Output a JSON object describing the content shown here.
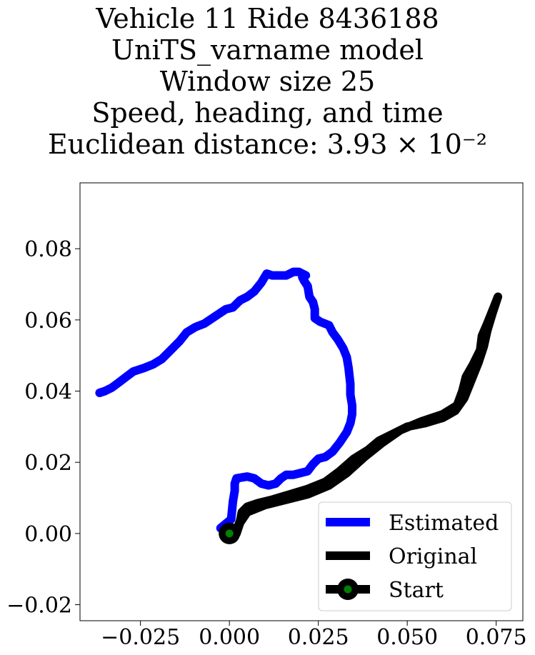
{
  "title_lines": [
    "Vehicle 11 Ride 8436188",
    "UniTS_varname model",
    "Window size 25",
    "Speed, heading, and time",
    "Euclidean distance: 3.93 × 10⁻²"
  ],
  "chart_data": {
    "type": "line",
    "xlim": [
      -0.042,
      0.0825
    ],
    "ylim": [
      -0.0245,
      0.0985
    ],
    "x_ticks": [
      -0.025,
      0.0,
      0.025,
      0.05,
      0.075
    ],
    "x_tick_labels": [
      "−0.025",
      "0.000",
      "0.025",
      "0.050",
      "0.075"
    ],
    "y_ticks": [
      -0.02,
      0.0,
      0.02,
      0.04,
      0.06,
      0.08
    ],
    "y_tick_labels": [
      "−0.02",
      "0.00",
      "0.02",
      "0.04",
      "0.06",
      "0.08"
    ],
    "grid": false,
    "legend_position": "lower right",
    "series": [
      {
        "name": "Estimated",
        "color": "#0000ff",
        "points": [
          [
            -0.0025,
            0.0015
          ],
          [
            0.0005,
            0.004
          ],
          [
            0.001,
            0.009
          ],
          [
            0.0015,
            0.012
          ],
          [
            0.0015,
            0.014
          ],
          [
            0.002,
            0.0155
          ],
          [
            0.005,
            0.016
          ],
          [
            0.007,
            0.0155
          ],
          [
            0.009,
            0.014
          ],
          [
            0.011,
            0.0135
          ],
          [
            0.013,
            0.014
          ],
          [
            0.0145,
            0.0155
          ],
          [
            0.016,
            0.0165
          ],
          [
            0.018,
            0.0165
          ],
          [
            0.02,
            0.017
          ],
          [
            0.022,
            0.0175
          ],
          [
            0.0235,
            0.0195
          ],
          [
            0.025,
            0.021
          ],
          [
            0.027,
            0.0215
          ],
          [
            0.029,
            0.023
          ],
          [
            0.031,
            0.0255
          ],
          [
            0.033,
            0.0285
          ],
          [
            0.034,
            0.031
          ],
          [
            0.0345,
            0.0335
          ],
          [
            0.0345,
            0.036
          ],
          [
            0.034,
            0.039
          ],
          [
            0.034,
            0.042
          ],
          [
            0.0335,
            0.0465
          ],
          [
            0.033,
            0.0495
          ],
          [
            0.032,
            0.052
          ],
          [
            0.0305,
            0.0545
          ],
          [
            0.029,
            0.0565
          ],
          [
            0.028,
            0.0585
          ],
          [
            0.0255,
            0.0595
          ],
          [
            0.024,
            0.0605
          ],
          [
            0.024,
            0.063
          ],
          [
            0.0235,
            0.065
          ],
          [
            0.0225,
            0.0665
          ],
          [
            0.022,
            0.0695
          ],
          [
            0.021,
            0.071
          ],
          [
            0.0205,
            0.072
          ],
          [
            0.0215,
            0.0725
          ],
          [
            0.0205,
            0.073
          ],
          [
            0.0195,
            0.0735
          ],
          [
            0.018,
            0.0735
          ],
          [
            0.016,
            0.0725
          ],
          [
            0.014,
            0.0725
          ],
          [
            0.012,
            0.0725
          ],
          [
            0.0105,
            0.073
          ],
          [
            0.009,
            0.0705
          ],
          [
            0.007,
            0.068
          ],
          [
            0.005,
            0.0665
          ],
          [
            0.003,
            0.0655
          ],
          [
            0.001,
            0.0635
          ],
          [
            -0.001,
            0.063
          ],
          [
            -0.004,
            0.061
          ],
          [
            -0.007,
            0.059
          ],
          [
            -0.0095,
            0.058
          ],
          [
            -0.012,
            0.0565
          ],
          [
            -0.014,
            0.054
          ],
          [
            -0.0165,
            0.0515
          ],
          [
            -0.019,
            0.049
          ],
          [
            -0.0215,
            0.0475
          ],
          [
            -0.024,
            0.0465
          ],
          [
            -0.027,
            0.0455
          ],
          [
            -0.029,
            0.044
          ],
          [
            -0.031,
            0.0425
          ],
          [
            -0.033,
            0.041
          ],
          [
            -0.035,
            0.04
          ],
          [
            -0.0365,
            0.0395
          ]
        ]
      },
      {
        "name": "Original",
        "color": "#000000",
        "points": [
          [
            0.0,
            0.0
          ],
          [
            0.002,
            0.001
          ],
          [
            0.003,
            0.0035
          ],
          [
            0.0035,
            0.006
          ],
          [
            0.005,
            0.0075
          ],
          [
            0.008,
            0.0085
          ],
          [
            0.012,
            0.0095
          ],
          [
            0.017,
            0.011
          ],
          [
            0.022,
            0.0125
          ],
          [
            0.027,
            0.0145
          ],
          [
            0.031,
            0.0175
          ],
          [
            0.035,
            0.021
          ],
          [
            0.039,
            0.0235
          ],
          [
            0.042,
            0.026
          ],
          [
            0.046,
            0.028
          ],
          [
            0.05,
            0.03
          ],
          [
            0.055,
            0.031
          ],
          [
            0.06,
            0.0325
          ],
          [
            0.0635,
            0.0345
          ],
          [
            0.066,
            0.038
          ],
          [
            0.068,
            0.043
          ],
          [
            0.07,
            0.048
          ],
          [
            0.0715,
            0.0525
          ],
          [
            0.0725,
            0.057
          ],
          [
            0.074,
            0.062
          ],
          [
            0.0755,
            0.0665
          ],
          [
            0.0745,
            0.064
          ],
          [
            0.0725,
            0.059
          ],
          [
            0.071,
            0.0555
          ],
          [
            0.0705,
            0.0515
          ],
          [
            0.0685,
            0.0475
          ],
          [
            0.0665,
            0.044
          ],
          [
            0.0655,
            0.04
          ],
          [
            0.064,
            0.036
          ],
          [
            0.06,
            0.0335
          ],
          [
            0.054,
            0.0315
          ],
          [
            0.048,
            0.029
          ],
          [
            0.043,
            0.0255
          ],
          [
            0.038,
            0.0215
          ],
          [
            0.033,
            0.017
          ],
          [
            0.028,
            0.0135
          ],
          [
            0.022,
            0.011
          ],
          [
            0.016,
            0.0095
          ],
          [
            0.01,
            0.008
          ],
          [
            0.005,
            0.006
          ],
          [
            0.003,
            0.003
          ],
          [
            0.002,
            0.0
          ]
        ]
      },
      {
        "name": "Start",
        "color": "#000000",
        "marker_fill": "#008000",
        "points": [
          [
            0.0,
            0.0
          ]
        ]
      }
    ]
  }
}
